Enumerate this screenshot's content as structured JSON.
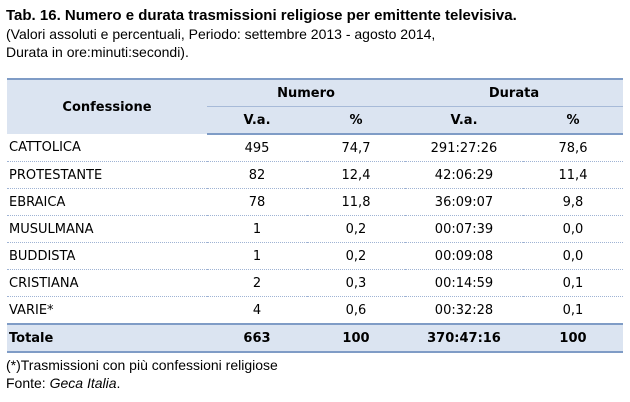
{
  "caption": {
    "title": "Tab. 16. Numero e durata trasmissioni religiose per emittente televisiva.",
    "subtitle_line1": "(Valori assoluti e percentuali, Periodo: settembre 2013 - agosto 2014,",
    "subtitle_line2": "Durata in ore:minuti:secondi)."
  },
  "table": {
    "header": {
      "confessione": "Confessione",
      "numero": "Numero",
      "durata": "Durata",
      "va": "V.a.",
      "pct": "%"
    },
    "rows": [
      {
        "name": "CATTOLICA",
        "num_va": "495",
        "num_pct": "74,7",
        "dur_va": "291:27:26",
        "dur_pct": "78,6"
      },
      {
        "name": "PROTESTANTE",
        "num_va": "82",
        "num_pct": "12,4",
        "dur_va": "42:06:29",
        "dur_pct": "11,4"
      },
      {
        "name": "EBRAICA",
        "num_va": "78",
        "num_pct": "11,8",
        "dur_va": "36:09:07",
        "dur_pct": "9,8"
      },
      {
        "name": "MUSULMANA",
        "num_va": "1",
        "num_pct": "0,2",
        "dur_va": "00:07:39",
        "dur_pct": "0,0"
      },
      {
        "name": "BUDDISTA",
        "num_va": "1",
        "num_pct": "0,2",
        "dur_va": "00:09:08",
        "dur_pct": "0,0"
      },
      {
        "name": "CRISTIANA",
        "num_va": "2",
        "num_pct": "0,3",
        "dur_va": "00:14:59",
        "dur_pct": "0,1"
      },
      {
        "name": "VARIE*",
        "num_va": "4",
        "num_pct": "0,6",
        "dur_va": "00:32:28",
        "dur_pct": "0,1"
      }
    ],
    "total": {
      "name": "Totale",
      "num_va": "663",
      "num_pct": "100",
      "dur_va": "370:47:16",
      "dur_pct": "100"
    }
  },
  "notes": {
    "footnote": "(*)Trasmissioni con più confessioni religiose",
    "source_label": "Fonte: ",
    "source_name": "Geca Italia",
    "source_end": "."
  },
  "colors": {
    "header_fill": "#dbe4f1",
    "rule": "#7f9cc6"
  }
}
